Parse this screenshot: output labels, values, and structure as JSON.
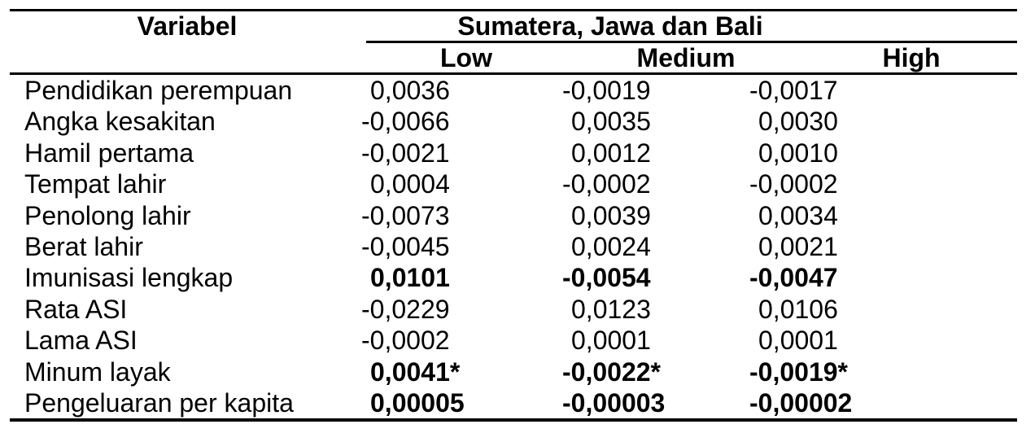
{
  "table": {
    "header": {
      "variabel_label": "Variabel",
      "group_label": "Sumatera, Jawa dan Bali",
      "columns": [
        "Low",
        "Medium",
        "High"
      ]
    },
    "rows": [
      {
        "label": "Pendidikan perempuan",
        "low": "0,0036",
        "medium": "-0,0019",
        "high": "-0,0017",
        "bold": false
      },
      {
        "label": "Angka kesakitan",
        "low": "-0,0066",
        "medium": "0,0035",
        "high": "0,0030",
        "bold": false
      },
      {
        "label": "Hamil pertama",
        "low": "-0,0021",
        "medium": "0,0012",
        "high": "0,0010",
        "bold": false
      },
      {
        "label": "Tempat lahir",
        "low": "0,0004",
        "medium": "-0,0002",
        "high": "-0,0002",
        "bold": false
      },
      {
        "label": "Penolong lahir",
        "low": "-0,0073",
        "medium": "0,0039",
        "high": "0,0034",
        "bold": false
      },
      {
        "label": "Berat lahir",
        "low": "-0,0045",
        "medium": "0,0024",
        "high": "0,0021",
        "bold": false
      },
      {
        "label": "Imunisasi lengkap",
        "low": "0,0101",
        "medium": "-0,0054",
        "high": "-0,0047",
        "bold": true
      },
      {
        "label": "Rata ASI",
        "low": "-0,0229",
        "medium": "0,0123",
        "high": "0,0106",
        "bold": false
      },
      {
        "label": "Lama ASI",
        "low": "-0,0002",
        "medium": "0,0001",
        "high": "0,0001",
        "bold": false
      },
      {
        "label": "Minum layak",
        "low": "0,0041*",
        "medium": "-0,0022*",
        "high": "-0,0019*",
        "bold": true
      },
      {
        "label": "Pengeluaran per kapita",
        "low": "0,00005",
        "medium": "-0,00003",
        "high": "-0,00002",
        "bold": true
      }
    ],
    "colors": {
      "text": "#000000",
      "background": "#ffffff",
      "rule": "#000000"
    }
  }
}
